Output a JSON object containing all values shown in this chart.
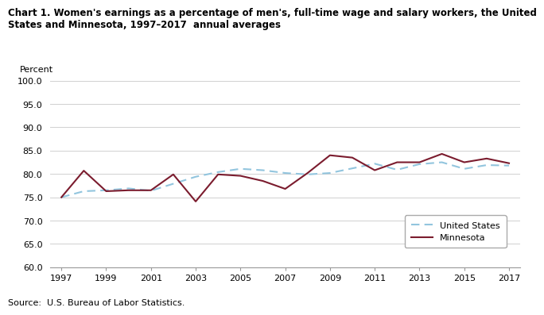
{
  "title_line1": "Chart 1. Women's earnings as a percentage of men's, full-time wage and salary workers, the United",
  "title_line2": "States and Minnesota, 1997–2017  annual averages",
  "ylabel": "Percent",
  "source": "Source:  U.S. Bureau of Labor Statistics.",
  "years": [
    1997,
    1998,
    1999,
    2000,
    2001,
    2002,
    2003,
    2004,
    2005,
    2006,
    2007,
    2008,
    2009,
    2010,
    2011,
    2012,
    2013,
    2014,
    2015,
    2016,
    2017
  ],
  "us_data": [
    75.0,
    76.3,
    76.5,
    76.9,
    76.4,
    77.9,
    79.4,
    80.4,
    81.1,
    80.8,
    80.2,
    79.9,
    80.2,
    81.2,
    82.2,
    80.9,
    82.1,
    82.5,
    81.1,
    81.9,
    81.8
  ],
  "mn_data": [
    75.0,
    80.7,
    76.3,
    76.5,
    76.5,
    79.9,
    74.1,
    79.9,
    79.6,
    78.5,
    76.8,
    80.2,
    84.0,
    83.5,
    80.8,
    82.5,
    82.5,
    84.3,
    82.5,
    83.3,
    82.3
  ],
  "us_color": "#92c5de",
  "mn_color": "#7b1c2e",
  "ylim": [
    60.0,
    100.0
  ],
  "yticks": [
    60.0,
    65.0,
    70.0,
    75.0,
    80.0,
    85.0,
    90.0,
    95.0,
    100.0
  ],
  "xticks": [
    1997,
    1999,
    2001,
    2003,
    2005,
    2007,
    2009,
    2011,
    2013,
    2015,
    2017
  ],
  "bg_color": "#ffffff",
  "grid_color": "#d0d0d0",
  "title_fontsize": 8.5,
  "tick_fontsize": 8,
  "source_fontsize": 8
}
